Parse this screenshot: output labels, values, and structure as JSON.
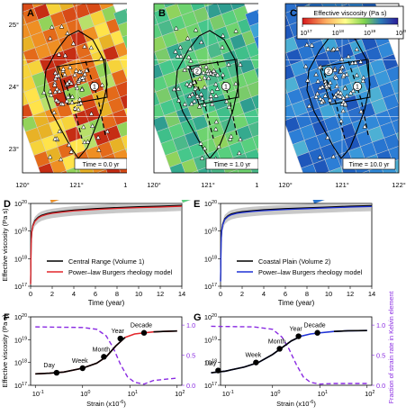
{
  "colors": {
    "red_model": "#e3262b",
    "blue_model": "#1f32d6",
    "purple_dash": "#8a2be2",
    "black": "#000000",
    "gray_band": "#9a9a9a"
  },
  "maps": {
    "panel_labels": [
      "A",
      "B",
      "C"
    ],
    "lon_ticks": [
      "120°",
      "121°",
      "122°"
    ],
    "lat_ticks": [
      "25°",
      "24°",
      "23°"
    ],
    "times": [
      "Time = 0.0 yr",
      "Time = 1.0 yr",
      "Time = 10.0 yr"
    ],
    "volume_markers": [
      "1",
      "2"
    ],
    "colorbar": {
      "title": "Effective viscosity (Pa s)",
      "ticks": [
        "10",
        "10",
        "10",
        "10"
      ],
      "exponents": [
        "17",
        "18",
        "19",
        "20"
      ]
    }
  },
  "chart_data": [
    {
      "panel": "D",
      "type": "line",
      "ylabel": "Effective viscosity (Pa s)",
      "xlabel": "Time (year)",
      "xlim": [
        0,
        14
      ],
      "ylim_log10": [
        17,
        20
      ],
      "x_ticks": [
        "0",
        "2",
        "4",
        "6",
        "8",
        "10",
        "12",
        "14"
      ],
      "y_ticks": [
        "10",
        "10",
        "10",
        "10"
      ],
      "y_tick_exponents": [
        "17",
        "18",
        "19",
        "20"
      ],
      "legend": [
        "Central Range (Volume 1)",
        "Power–law Burgers rheology model"
      ],
      "series_log10": {
        "x": [
          0,
          0.05,
          0.1,
          0.2,
          0.4,
          0.7,
          1,
          1.5,
          2,
          3,
          4,
          6,
          8,
          10,
          12,
          14
        ],
        "y": [
          17.1,
          18.55,
          18.95,
          19.2,
          19.38,
          19.5,
          19.57,
          19.63,
          19.67,
          19.72,
          19.76,
          19.81,
          19.85,
          19.88,
          19.9,
          19.93
        ]
      }
    },
    {
      "panel": "E",
      "type": "line",
      "ylabel": "",
      "xlabel": "Time (year)",
      "xlim": [
        0,
        14
      ],
      "ylim_log10": [
        17,
        20
      ],
      "x_ticks": [
        "0",
        "2",
        "4",
        "6",
        "8",
        "10",
        "12",
        "14"
      ],
      "y_ticks": [
        "10",
        "10",
        "10",
        "10"
      ],
      "y_tick_exponents": [
        "17",
        "18",
        "19",
        "20"
      ],
      "legend": [
        "Coastal Plain (Volume 2)",
        "Power–law Burgers rheology model"
      ],
      "series_log10": {
        "x": [
          0,
          0.05,
          0.1,
          0.2,
          0.4,
          0.7,
          1,
          1.5,
          2,
          3,
          4,
          6,
          8,
          10,
          12,
          14
        ],
        "y": [
          17.2,
          18.6,
          19.0,
          19.25,
          19.45,
          19.56,
          19.62,
          19.67,
          19.7,
          19.74,
          19.77,
          19.81,
          19.84,
          19.87,
          19.9,
          19.92
        ]
      }
    },
    {
      "panel": "F",
      "type": "line",
      "xlabel": "Strain (x10",
      "xlabel_exp": "-6",
      "xlabel_tail": ")",
      "ylabel": "Effective viscosity (Pa s)",
      "x_log_ticks": [
        "10",
        "10",
        "10",
        "10"
      ],
      "x_log_exponents": [
        "-1",
        "0",
        "1",
        "2"
      ],
      "y_ticks": [
        "10",
        "10",
        "10",
        "10"
      ],
      "y_tick_exponents": [
        "17",
        "18",
        "19",
        "20"
      ],
      "right_ticks": [
        "0.0",
        "0.5",
        "1.0"
      ],
      "time_labels": [
        "Day",
        "Week",
        "Month",
        "Year",
        "Decade"
      ],
      "points_log10": [
        [
          -0.55,
          17.55
        ],
        [
          0.0,
          17.75
        ],
        [
          0.45,
          18.25
        ],
        [
          0.8,
          19.05
        ],
        [
          1.3,
          19.3
        ]
      ],
      "curve_log10": {
        "x": [
          -1.0,
          -0.7,
          -0.4,
          0.0,
          0.3,
          0.5,
          0.7,
          0.9,
          1.1,
          1.3,
          1.5,
          1.7,
          2.0
        ],
        "y": [
          17.5,
          17.53,
          17.58,
          17.75,
          17.97,
          18.25,
          18.72,
          19.1,
          19.25,
          19.3,
          19.34,
          19.36,
          19.38
        ]
      },
      "fraction": {
        "x": [
          -1.0,
          0.0,
          0.3,
          0.5,
          0.65,
          0.8,
          0.95,
          1.1,
          1.3,
          1.5,
          2.0
        ],
        "y": [
          0.97,
          0.96,
          0.93,
          0.82,
          0.62,
          0.35,
          0.14,
          0.05,
          0.02,
          0.08,
          0.12
        ]
      }
    },
    {
      "panel": "G",
      "type": "line",
      "xlabel": "Strain (x10",
      "xlabel_exp": "-6",
      "xlabel_tail": ")",
      "ylabel": "Fraction of strain rate in Kelvin element",
      "x_log_ticks": [
        "10",
        "10",
        "10",
        "10"
      ],
      "x_log_exponents": [
        "-1",
        "0",
        "1",
        "2"
      ],
      "y_ticks": [
        "10",
        "10",
        "10",
        "10"
      ],
      "y_tick_exponents": [
        "17",
        "18",
        "19",
        "20"
      ],
      "right_ticks": [
        "0.0",
        "0.5",
        "1.0"
      ],
      "time_labels": [
        "Day",
        "Week",
        "Month",
        "Year",
        "Decade"
      ],
      "points_log10": [
        [
          -1.15,
          17.65
        ],
        [
          -0.35,
          18.0
        ],
        [
          0.15,
          18.6
        ],
        [
          0.55,
          19.15
        ],
        [
          0.95,
          19.3
        ]
      ],
      "curve_log10": {
        "x": [
          -1.3,
          -1.0,
          -0.6,
          -0.3,
          0.0,
          0.2,
          0.4,
          0.6,
          0.8,
          1.0,
          1.3,
          1.6,
          2.0
        ],
        "y": [
          17.55,
          17.62,
          17.8,
          18.0,
          18.35,
          18.65,
          18.95,
          19.15,
          19.25,
          19.3,
          19.36,
          19.39,
          19.4
        ]
      },
      "fraction": {
        "x": [
          -1.3,
          -0.4,
          0.0,
          0.2,
          0.35,
          0.5,
          0.65,
          0.8,
          1.0,
          1.3,
          2.0
        ],
        "y": [
          0.98,
          0.97,
          0.93,
          0.8,
          0.6,
          0.35,
          0.14,
          0.05,
          0.02,
          0.03,
          0.03
        ]
      }
    }
  ]
}
